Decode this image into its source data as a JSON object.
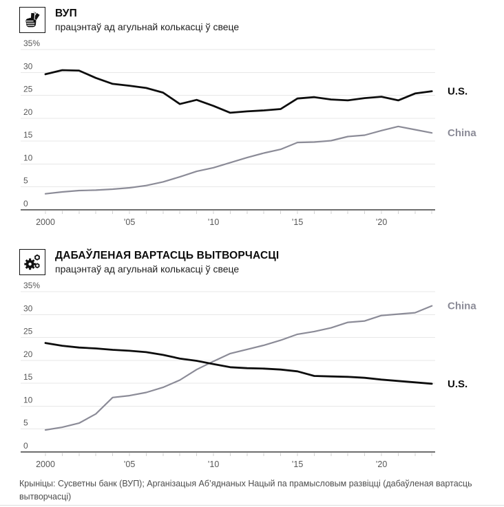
{
  "source": "Крыніцы: Сусветны банк (ВУП); Арганізацыя Аб’яднаных Нацый па прамысловым развіцці (дабаўленая вартасць вытворчасці)",
  "colors": {
    "us_line": "#0d0d0d",
    "china_line": "#8b8b97",
    "grid": "#e7e7e7",
    "axis": "#6e6e6e",
    "tick_label": "#565656"
  },
  "chart_data": [
    {
      "type": "line",
      "title": "ВУП",
      "subtitle": "працэнтаў ад агульнай колькасці ў свеце",
      "icon": "money-in-hand-icon",
      "ylabel": "працэнтаў ад агульнай колькасці ў свеце",
      "ylim": [
        0,
        35
      ],
      "grid": true,
      "legend_position": "right-of-line-ends",
      "x": [
        2000,
        2001,
        2002,
        2003,
        2004,
        2005,
        2006,
        2007,
        2008,
        2009,
        2010,
        2011,
        2012,
        2013,
        2014,
        2015,
        2016,
        2017,
        2018,
        2019,
        2020,
        2021,
        2022,
        2023
      ],
      "xticks": [
        {
          "v": 2000,
          "label": "2000"
        },
        {
          "v": 2005,
          "label": "’05"
        },
        {
          "v": 2010,
          "label": "’10"
        },
        {
          "v": 2015,
          "label": "’15"
        },
        {
          "v": 2020,
          "label": "’20"
        }
      ],
      "yticks": [
        {
          "v": 0,
          "label": "0"
        },
        {
          "v": 5,
          "label": "5"
        },
        {
          "v": 10,
          "label": "10"
        },
        {
          "v": 15,
          "label": "15"
        },
        {
          "v": 20,
          "label": "20"
        },
        {
          "v": 25,
          "label": "25"
        },
        {
          "v": 30,
          "label": "30"
        },
        {
          "v": 35,
          "label": "35%"
        }
      ],
      "series": [
        {
          "name": "U.S.",
          "color": "#0d0d0d",
          "values": [
            29.6,
            30.5,
            30.4,
            28.8,
            27.5,
            27.1,
            26.6,
            25.6,
            23.1,
            24.0,
            22.7,
            21.2,
            21.5,
            21.7,
            22.0,
            24.3,
            24.6,
            24.1,
            23.9,
            24.4,
            24.7,
            23.9,
            25.4,
            25.9
          ]
        },
        {
          "name": "China",
          "color": "#8b8b97",
          "values": [
            3.5,
            3.9,
            4.2,
            4.3,
            4.5,
            4.8,
            5.3,
            6.1,
            7.2,
            8.4,
            9.2,
            10.3,
            11.4,
            12.4,
            13.2,
            14.7,
            14.8,
            15.1,
            16.0,
            16.3,
            17.3,
            18.2,
            17.5,
            16.8
          ]
        }
      ]
    },
    {
      "type": "line",
      "title": "ДАБАЎЛЕНАЯ ВАРТАСЦЬ ВЫТВОРЧАСЦІ",
      "subtitle": "працэнтаў ад агульнай колькасці ў свеце",
      "icon": "gears-icon",
      "ylabel": "працэнтаў ад агульнай колькасці ў свеце",
      "ylim": [
        0,
        35
      ],
      "grid": true,
      "legend_position": "right-of-line-ends",
      "x": [
        2000,
        2001,
        2002,
        2003,
        2004,
        2005,
        2006,
        2007,
        2008,
        2009,
        2010,
        2011,
        2012,
        2013,
        2014,
        2015,
        2016,
        2017,
        2018,
        2019,
        2020,
        2021,
        2022,
        2023
      ],
      "xticks": [
        {
          "v": 2000,
          "label": "2000"
        },
        {
          "v": 2005,
          "label": "’05"
        },
        {
          "v": 2010,
          "label": "’10"
        },
        {
          "v": 2015,
          "label": "’15"
        },
        {
          "v": 2020,
          "label": "’20"
        }
      ],
      "yticks": [
        {
          "v": 0,
          "label": "0"
        },
        {
          "v": 5,
          "label": "5"
        },
        {
          "v": 10,
          "label": "10"
        },
        {
          "v": 15,
          "label": "15"
        },
        {
          "v": 20,
          "label": "20"
        },
        {
          "v": 25,
          "label": "25"
        },
        {
          "v": 30,
          "label": "30"
        },
        {
          "v": 35,
          "label": "35%"
        }
      ],
      "series": [
        {
          "name": "China",
          "color": "#8b8b97",
          "values": [
            4.8,
            5.4,
            6.3,
            8.3,
            11.9,
            12.3,
            13.0,
            14.1,
            15.7,
            18.0,
            19.8,
            21.5,
            22.4,
            23.3,
            24.4,
            25.7,
            26.3,
            27.1,
            28.3,
            28.6,
            29.8,
            30.1,
            30.4,
            31.9
          ]
        },
        {
          "name": "U.S.",
          "color": "#0d0d0d",
          "values": [
            23.8,
            23.2,
            22.8,
            22.6,
            22.3,
            22.1,
            21.8,
            21.2,
            20.4,
            19.9,
            19.2,
            18.5,
            18.3,
            18.2,
            18.0,
            17.6,
            16.6,
            16.5,
            16.4,
            16.2,
            15.8,
            15.5,
            15.2,
            14.9
          ]
        }
      ]
    }
  ]
}
